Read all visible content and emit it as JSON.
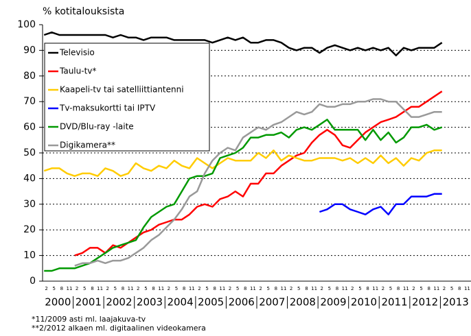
{
  "chart_data": {
    "type": "line",
    "y_label": "% kotitalouksista",
    "years": [
      "2000",
      "2001",
      "2002",
      "2003",
      "2004",
      "2005",
      "2006",
      "2007",
      "2008",
      "2009",
      "2010",
      "2011",
      "2012",
      "2013"
    ],
    "categories": [
      "2",
      "5",
      "8",
      "11",
      "2",
      "5",
      "8",
      "11",
      "2",
      "5",
      "8",
      "11",
      "2",
      "5",
      "8",
      "11",
      "2",
      "5",
      "8",
      "11",
      "2",
      "5",
      "8",
      "11",
      "2",
      "5",
      "8",
      "11",
      "2",
      "5",
      "8",
      "11",
      "2",
      "5",
      "8",
      "11",
      "2",
      "5",
      "8",
      "11",
      "2",
      "5",
      "8",
      "11",
      "2",
      "5",
      "8",
      "11",
      "2",
      "5",
      "8",
      "11",
      "2",
      "5",
      "8",
      "11"
    ],
    "ylim": [
      0,
      100
    ],
    "yticks": [
      0,
      10,
      20,
      30,
      40,
      50,
      60,
      70,
      80,
      90,
      100
    ],
    "grid": true,
    "series": [
      {
        "name": "Televisio",
        "color": "#000000",
        "values": [
          96,
          97,
          96,
          96,
          96,
          96,
          96,
          96,
          96,
          95,
          96,
          95,
          95,
          94,
          95,
          95,
          95,
          94,
          94,
          94,
          94,
          94,
          93,
          94,
          95,
          94,
          95,
          93,
          93,
          94,
          94,
          93,
          91,
          90,
          91,
          91,
          89,
          91,
          92,
          91,
          90,
          91,
          90,
          91,
          90,
          91,
          88,
          91,
          90,
          91,
          91,
          91,
          93,
          null,
          null,
          null
        ]
      },
      {
        "name": "Taulu-tv*",
        "color": "#ff0000",
        "values": [
          null,
          null,
          null,
          null,
          10,
          11,
          13,
          13,
          11,
          14,
          13,
          15,
          17,
          19,
          20,
          22,
          23,
          24,
          24,
          26,
          29,
          30,
          29,
          32,
          33,
          35,
          33,
          38,
          38,
          42,
          42,
          45,
          47,
          49,
          50,
          54,
          57,
          59,
          57,
          53,
          52,
          55,
          58,
          60,
          62,
          63,
          64,
          66,
          68,
          68,
          70,
          72,
          74,
          null,
          null,
          null
        ]
      },
      {
        "name": "Kaapeli-tv tai satelliittiantenni",
        "color": "#ffcc00",
        "values": [
          43,
          44,
          44,
          42,
          41,
          42,
          42,
          41,
          44,
          43,
          41,
          42,
          46,
          44,
          43,
          45,
          44,
          47,
          45,
          44,
          48,
          46,
          44,
          46,
          48,
          47,
          47,
          47,
          50,
          48,
          51,
          47,
          49,
          48,
          47,
          47,
          48,
          48,
          48,
          47,
          48,
          46,
          48,
          46,
          49,
          46,
          48,
          45,
          48,
          47,
          50,
          51,
          51,
          null,
          null,
          null
        ]
      },
      {
        "name": "Tv-maksukortti tai IPTV",
        "color": "#0000ff",
        "values": [
          null,
          null,
          null,
          null,
          null,
          null,
          null,
          null,
          null,
          null,
          null,
          null,
          null,
          null,
          null,
          null,
          null,
          null,
          null,
          null,
          null,
          null,
          null,
          null,
          null,
          null,
          null,
          null,
          null,
          null,
          null,
          null,
          null,
          null,
          null,
          null,
          27,
          28,
          30,
          30,
          28,
          27,
          26,
          28,
          29,
          26,
          30,
          30,
          33,
          33,
          33,
          34,
          34,
          null,
          null,
          null
        ]
      },
      {
        "name": "DVD/Blu-ray -laite",
        "color": "#009900",
        "values": [
          4,
          4,
          5,
          5,
          5,
          6,
          7,
          9,
          11,
          13,
          14,
          15,
          16,
          21,
          25,
          27,
          29,
          30,
          35,
          40,
          41,
          41,
          42,
          48,
          49,
          50,
          52,
          56,
          56,
          57,
          57,
          58,
          56,
          59,
          60,
          59,
          61,
          63,
          59,
          59,
          59,
          59,
          55,
          59,
          55,
          58,
          54,
          56,
          60,
          60,
          61,
          59,
          60,
          null,
          null,
          null
        ]
      },
      {
        "name": "Digikamera**",
        "color": "#999999",
        "values": [
          null,
          null,
          null,
          null,
          6,
          7,
          7,
          8,
          7,
          8,
          8,
          9,
          11,
          13,
          16,
          18,
          21,
          24,
          28,
          33,
          35,
          42,
          47,
          50,
          52,
          51,
          56,
          58,
          60,
          59,
          61,
          62,
          64,
          66,
          65,
          66,
          69,
          68,
          68,
          69,
          69,
          70,
          70,
          71,
          71,
          70,
          70,
          67,
          64,
          64,
          65,
          66,
          66,
          null,
          null,
          null
        ]
      }
    ],
    "footnotes": [
      "*11/2009 asti ml. laajakuva-tv",
      "**2/2012 alkaen ml. digitaalinen videokamera"
    ]
  }
}
